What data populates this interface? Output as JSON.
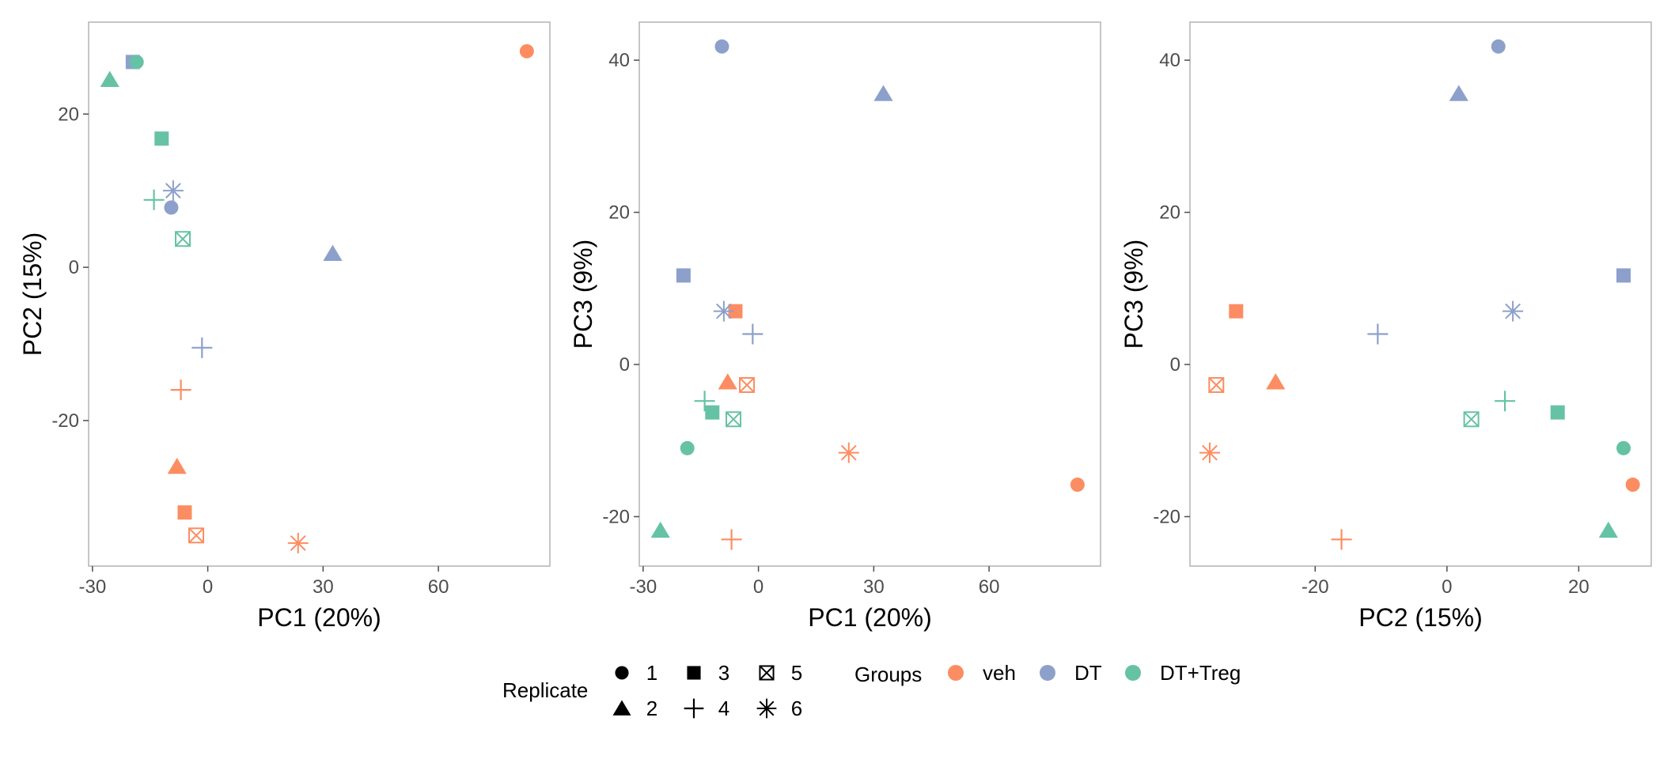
{
  "colors": {
    "veh": "#FC8D62",
    "DT": "#8DA0CB",
    "DT+Treg": "#66C2A5"
  },
  "chart_data": [
    {
      "type": "scatter",
      "xlabel": "PC1 (20%)",
      "ylabel": "PC2 (15%)",
      "xlim": [
        -31,
        89
      ],
      "ylim": [
        -39,
        32
      ],
      "xticks": [
        -30,
        0,
        30,
        60
      ],
      "yticks": [
        -20,
        0,
        20
      ],
      "points": [
        {
          "x": 83,
          "y": 28.2,
          "group": "veh",
          "rep": 1
        },
        {
          "x": -8,
          "y": -26,
          "group": "veh",
          "rep": 2
        },
        {
          "x": -6,
          "y": -32,
          "group": "veh",
          "rep": 3
        },
        {
          "x": -7,
          "y": -16,
          "group": "veh",
          "rep": 4
        },
        {
          "x": -3,
          "y": -35,
          "group": "veh",
          "rep": 5
        },
        {
          "x": 23.5,
          "y": -36,
          "group": "veh",
          "rep": 6
        },
        {
          "x": -9.5,
          "y": 7.8,
          "group": "DT",
          "rep": 1
        },
        {
          "x": 32.5,
          "y": 1.8,
          "group": "DT",
          "rep": 2
        },
        {
          "x": -19.5,
          "y": 26.8,
          "group": "DT",
          "rep": 3
        },
        {
          "x": -1.5,
          "y": -10.5,
          "group": "DT",
          "rep": 4
        },
        {
          "x": -9,
          "y": 10,
          "group": "DT",
          "rep": 6
        },
        {
          "x": -18.5,
          "y": 26.8,
          "group": "DT+Treg",
          "rep": 1
        },
        {
          "x": -25.5,
          "y": 24.5,
          "group": "DT+Treg",
          "rep": 2
        },
        {
          "x": -12,
          "y": 16.8,
          "group": "DT+Treg",
          "rep": 3
        },
        {
          "x": -14,
          "y": 8.8,
          "group": "DT+Treg",
          "rep": 4
        },
        {
          "x": -6.5,
          "y": 3.7,
          "group": "DT+Treg",
          "rep": 5
        }
      ]
    },
    {
      "type": "scatter",
      "xlabel": "PC1 (20%)",
      "ylabel": "PC3 (9%)",
      "xlim": [
        -31,
        89
      ],
      "ylim": [
        -26.5,
        45
      ],
      "xticks": [
        -30,
        0,
        30,
        60
      ],
      "yticks": [
        -20,
        0,
        20,
        40
      ],
      "points": [
        {
          "x": 83,
          "y": -15.8,
          "group": "veh",
          "rep": 1
        },
        {
          "x": -8,
          "y": -2.3,
          "group": "veh",
          "rep": 2
        },
        {
          "x": -6,
          "y": 7,
          "group": "veh",
          "rep": 3
        },
        {
          "x": -7,
          "y": -23,
          "group": "veh",
          "rep": 4
        },
        {
          "x": -3,
          "y": -2.7,
          "group": "veh",
          "rep": 5
        },
        {
          "x": 23.5,
          "y": -11.6,
          "group": "veh",
          "rep": 6
        },
        {
          "x": -9.5,
          "y": 41.8,
          "group": "DT",
          "rep": 1
        },
        {
          "x": 32.5,
          "y": 35.6,
          "group": "DT",
          "rep": 2
        },
        {
          "x": -19.5,
          "y": 11.7,
          "group": "DT",
          "rep": 3
        },
        {
          "x": -1.5,
          "y": 4,
          "group": "DT",
          "rep": 4
        },
        {
          "x": -9,
          "y": 7,
          "group": "DT",
          "rep": 6
        },
        {
          "x": -18.5,
          "y": -11,
          "group": "DT+Treg",
          "rep": 1
        },
        {
          "x": -25.5,
          "y": -21.8,
          "group": "DT+Treg",
          "rep": 2
        },
        {
          "x": -12,
          "y": -6.3,
          "group": "DT+Treg",
          "rep": 3
        },
        {
          "x": -14,
          "y": -4.8,
          "group": "DT+Treg",
          "rep": 4
        },
        {
          "x": -6.5,
          "y": -7.2,
          "group": "DT+Treg",
          "rep": 5
        }
      ]
    },
    {
      "type": "scatter",
      "xlabel": "PC2 (15%)",
      "ylabel": "PC3 (9%)",
      "xlim": [
        -39,
        31
      ],
      "ylim": [
        -26.5,
        45
      ],
      "xticks": [
        -20,
        0,
        20
      ],
      "yticks": [
        -20,
        0,
        20,
        40
      ],
      "points": [
        {
          "x": 28.2,
          "y": -15.8,
          "group": "veh",
          "rep": 1
        },
        {
          "x": -26,
          "y": -2.3,
          "group": "veh",
          "rep": 2
        },
        {
          "x": -32,
          "y": 7,
          "group": "veh",
          "rep": 3
        },
        {
          "x": -16,
          "y": -23,
          "group": "veh",
          "rep": 4
        },
        {
          "x": -35,
          "y": -2.7,
          "group": "veh",
          "rep": 5
        },
        {
          "x": -36,
          "y": -11.6,
          "group": "veh",
          "rep": 6
        },
        {
          "x": 7.8,
          "y": 41.8,
          "group": "DT",
          "rep": 1
        },
        {
          "x": 1.8,
          "y": 35.6,
          "group": "DT",
          "rep": 2
        },
        {
          "x": 26.8,
          "y": 11.7,
          "group": "DT",
          "rep": 3
        },
        {
          "x": -10.5,
          "y": 4,
          "group": "DT",
          "rep": 4
        },
        {
          "x": 10,
          "y": 7,
          "group": "DT",
          "rep": 6
        },
        {
          "x": 26.8,
          "y": -11,
          "group": "DT+Treg",
          "rep": 1
        },
        {
          "x": 24.5,
          "y": -21.8,
          "group": "DT+Treg",
          "rep": 2
        },
        {
          "x": 16.8,
          "y": -6.3,
          "group": "DT+Treg",
          "rep": 3
        },
        {
          "x": 8.8,
          "y": -4.8,
          "group": "DT+Treg",
          "rep": 4
        },
        {
          "x": 3.7,
          "y": -7.2,
          "group": "DT+Treg",
          "rep": 5
        }
      ]
    }
  ],
  "legend": {
    "replicate_title": "Replicate",
    "replicates": [
      "1",
      "3",
      "5",
      "2",
      "4",
      "6"
    ],
    "groups_title": "Groups",
    "groups": [
      "veh",
      "DT",
      "DT+Treg"
    ]
  }
}
